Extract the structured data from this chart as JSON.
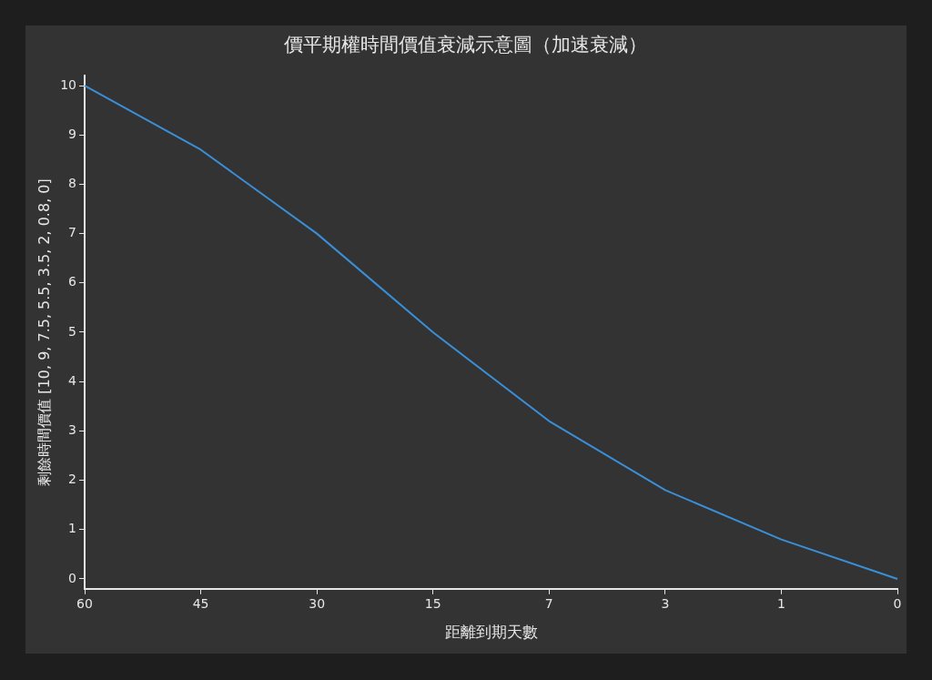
{
  "chart_data": {
    "type": "line",
    "title": "價平期權時間價值衰減示意圖（加速衰減）",
    "xlabel": "距離到期天數",
    "ylabel": "剩餘時間價值 [10, 9, 7.5, 5.5, 3.5, 2, 0.8, 0]",
    "categories": [
      "60",
      "45",
      "30",
      "15",
      "7",
      "3",
      "1",
      "0"
    ],
    "series": [
      {
        "color": "#3a8fd8",
        "values": [
          10,
          8.7,
          7,
          5,
          3.2,
          1.8,
          0.8,
          0
        ]
      }
    ],
    "ylim": [
      -0.2,
      10.2
    ],
    "yticks": [
      0,
      1,
      2,
      3,
      4,
      5,
      6,
      7,
      8,
      9,
      10
    ],
    "grid": false,
    "legend": false,
    "marker": "none",
    "line_style": "solid"
  }
}
